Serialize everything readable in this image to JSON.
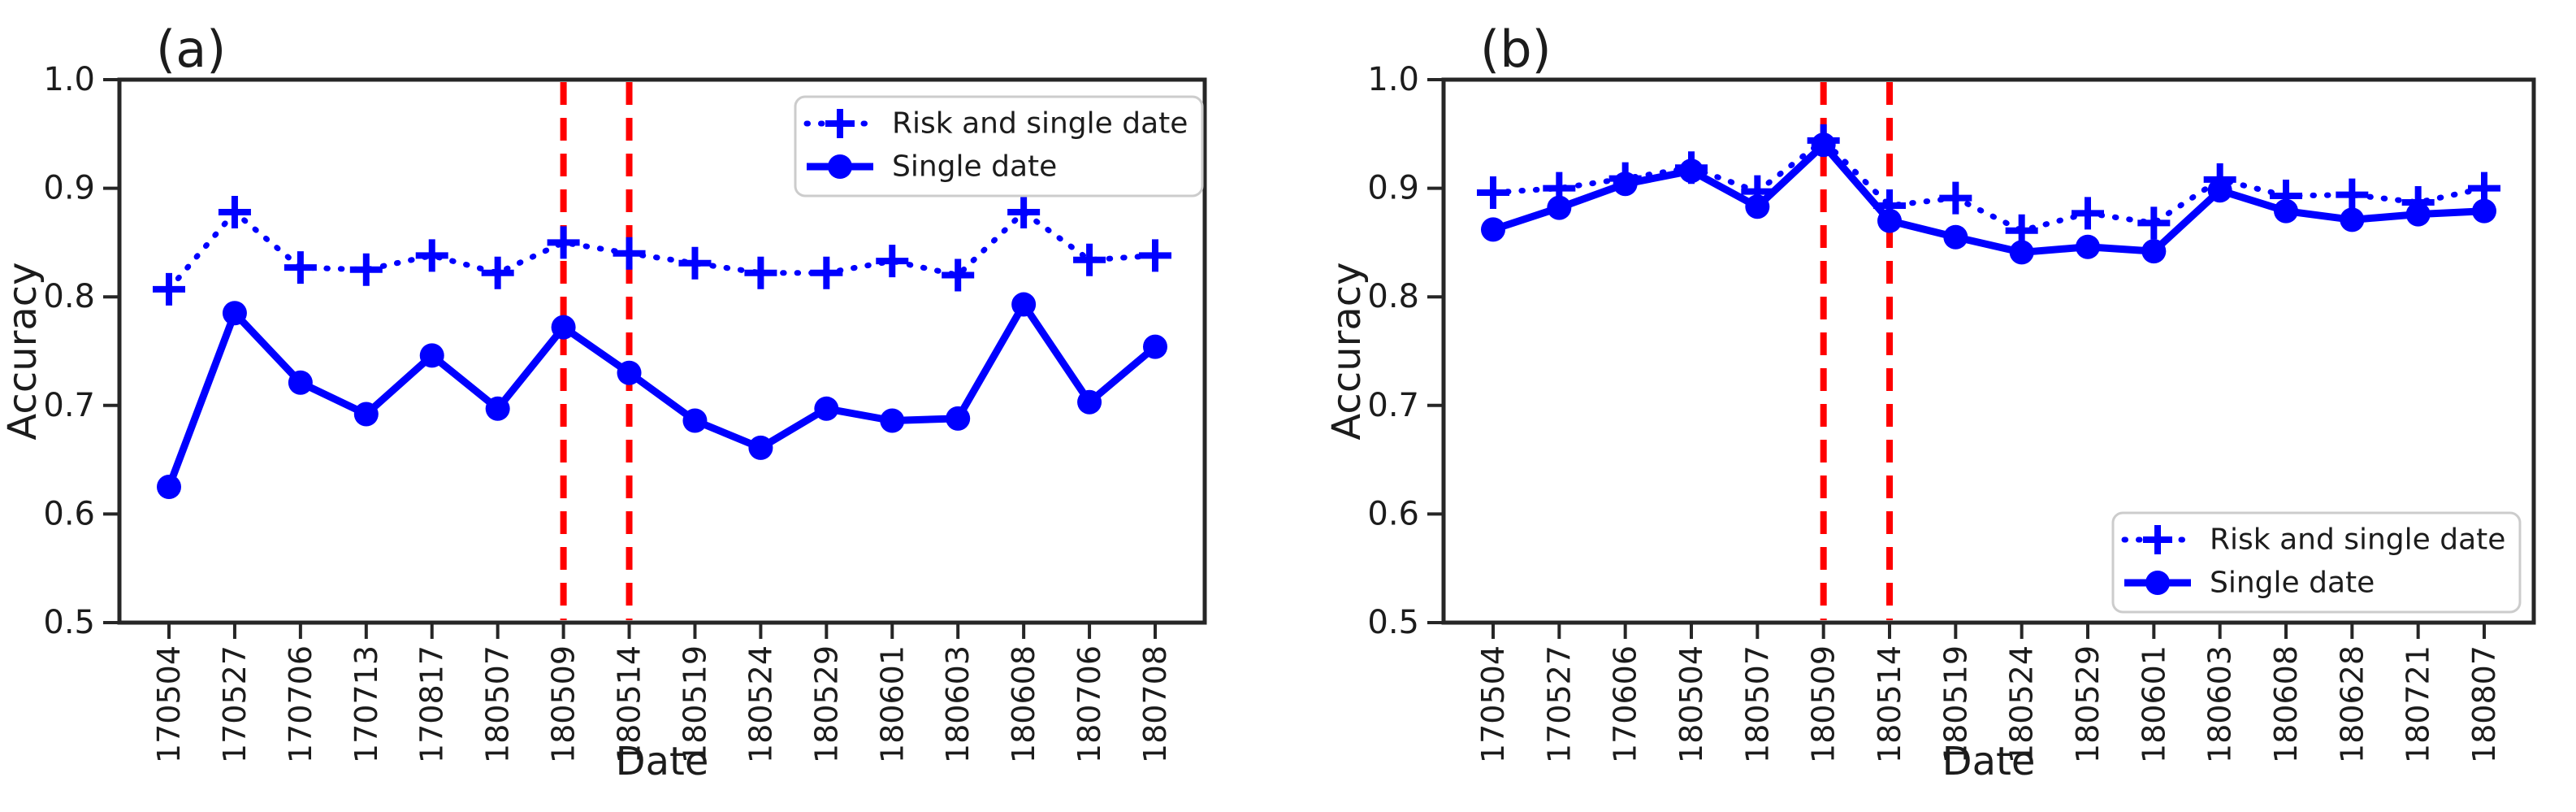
{
  "figure": {
    "background": "#ffffff",
    "axis_color": "#262626",
    "text_color": "#1c1c1c",
    "series_blue": "#0000ff",
    "event_red": "#ff0000",
    "legend_border": "#cccccc",
    "legend_fill": "#ffffff"
  },
  "chart_data": [
    {
      "type": "line",
      "panel_label": "(a)",
      "xlabel": "Date",
      "ylabel": "Accuracy",
      "ylim": [
        0.5,
        1.0
      ],
      "yticks": [
        "1.0",
        "0.9",
        "0.8",
        "0.7",
        "0.6",
        "0.5"
      ],
      "grid": false,
      "legend_position": "upper right",
      "categories": [
        "170504",
        "170527",
        "170706",
        "170713",
        "170817",
        "180507",
        "180509",
        "180514",
        "180519",
        "180524",
        "180529",
        "180601",
        "180603",
        "180608",
        "180706",
        "180708"
      ],
      "series": [
        {
          "name": "Risk and single date",
          "linestyle": "dotted",
          "marker": "plus",
          "color": "#0000ff",
          "values": [
            0.807,
            0.878,
            0.827,
            0.825,
            0.838,
            0.822,
            0.85,
            0.84,
            0.831,
            0.822,
            0.822,
            0.833,
            0.82,
            0.878,
            0.834,
            0.838
          ]
        },
        {
          "name": "Single date",
          "linestyle": "solid",
          "marker": "circle",
          "color": "#0000ff",
          "values": [
            0.625,
            0.785,
            0.721,
            0.692,
            0.746,
            0.697,
            0.772,
            0.73,
            0.686,
            0.661,
            0.697,
            0.686,
            0.688,
            0.793,
            0.703,
            0.754
          ]
        }
      ],
      "event_lines": {
        "categories": [
          "180509",
          "180514"
        ],
        "color": "#ff0000",
        "linestyle": "dashed"
      }
    },
    {
      "type": "line",
      "panel_label": "(b)",
      "xlabel": "Date",
      "ylabel": "Accuracy",
      "ylim": [
        0.5,
        1.0
      ],
      "yticks": [
        "1.0",
        "0.9",
        "0.8",
        "0.7",
        "0.6",
        "0.5"
      ],
      "grid": false,
      "legend_position": "lower right",
      "categories": [
        "170504",
        "170527",
        "170606",
        "180504",
        "180507",
        "180509",
        "180514",
        "180519",
        "180524",
        "180529",
        "180601",
        "180603",
        "180608",
        "180628",
        "180721",
        "180807"
      ],
      "series": [
        {
          "name": "Risk and single date",
          "linestyle": "dotted",
          "marker": "plus",
          "color": "#0000ff",
          "values": [
            0.896,
            0.9,
            0.909,
            0.919,
            0.897,
            0.944,
            0.884,
            0.891,
            0.861,
            0.877,
            0.868,
            0.908,
            0.893,
            0.894,
            0.887,
            0.9
          ]
        },
        {
          "name": "Single date",
          "linestyle": "solid",
          "marker": "circle",
          "color": "#0000ff",
          "values": [
            0.862,
            0.882,
            0.904,
            0.916,
            0.883,
            0.94,
            0.87,
            0.855,
            0.841,
            0.846,
            0.842,
            0.898,
            0.879,
            0.871,
            0.876,
            0.879
          ]
        }
      ],
      "event_lines": {
        "categories": [
          "180509",
          "180514"
        ],
        "color": "#ff0000",
        "linestyle": "dashed"
      }
    }
  ]
}
